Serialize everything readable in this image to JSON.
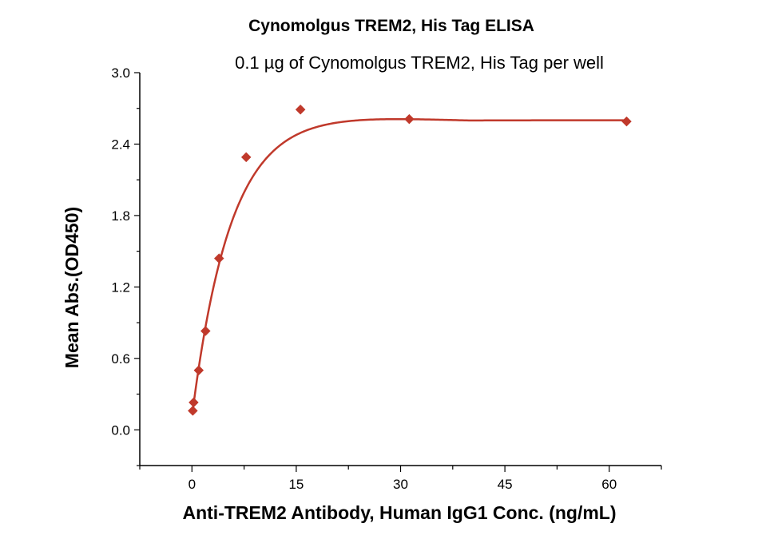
{
  "chart_data": {
    "type": "scatter",
    "title": "Cynomolgus TREM2, His Tag ELISA",
    "subtitle": "0.1 µg of Cynomolgus TREM2, His Tag per well",
    "xlabel": "Anti-TREM2 Antibody, Human IgG1 Conc. (ng/mL)",
    "ylabel": "Mean Abs.(OD450)",
    "xlim": [
      -7.5,
      67.5
    ],
    "ylim": [
      -0.3,
      3.0
    ],
    "x_ticks": [
      "0",
      "15",
      "30",
      "45",
      "60"
    ],
    "y_ticks": [
      "0.0",
      "0.6",
      "1.2",
      "1.8",
      "2.4",
      "3.0"
    ],
    "grid": false,
    "colors": {
      "series": "#c0392b",
      "axis": "#000000"
    },
    "series": [
      {
        "marker": "diamond",
        "fit_line": true,
        "x": [
          0.12,
          0.24,
          0.98,
          1.95,
          3.9,
          7.8,
          15.6,
          31.25,
          62.5
        ],
        "y": [
          0.16,
          0.23,
          0.5,
          0.83,
          1.44,
          2.29,
          2.69,
          2.61,
          2.59
        ]
      }
    ]
  }
}
